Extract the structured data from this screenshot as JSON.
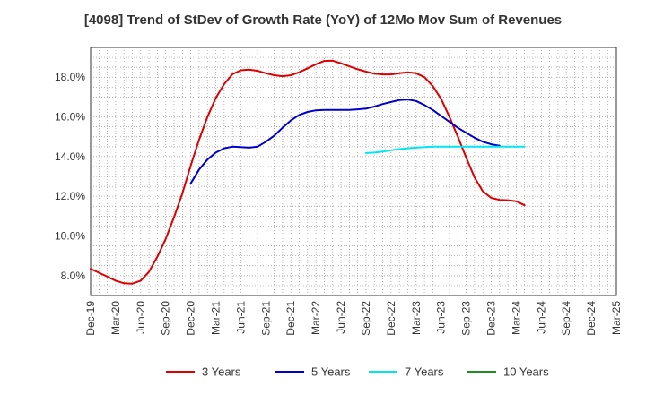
{
  "chart_data": {
    "type": "line",
    "title": "[4098]  Trend of StDev of Growth Rate (YoY) of 12Mo Mov Sum of Revenues",
    "xlabel": "",
    "ylabel": "",
    "ylim": [
      7.0,
      19.5
    ],
    "y_ticks": [
      8.0,
      10.0,
      12.0,
      14.0,
      16.0,
      18.0
    ],
    "y_tick_labels": [
      "8.0%",
      "10.0%",
      "12.0%",
      "14.0%",
      "16.0%",
      "18.0%"
    ],
    "x_tick_labels": [
      "Dec-19",
      "Mar-20",
      "Jun-20",
      "Sep-20",
      "Dec-20",
      "Mar-21",
      "Jun-21",
      "Sep-21",
      "Dec-21",
      "Mar-22",
      "Jun-22",
      "Sep-22",
      "Dec-22",
      "Mar-23",
      "Jun-23",
      "Sep-23",
      "Dec-23",
      "Mar-24",
      "Jun-24",
      "Sep-24",
      "Dec-24",
      "Mar-25"
    ],
    "grid": true,
    "legend_position": "bottom",
    "series": [
      {
        "name": "3 Years",
        "color": "#dd0000",
        "start_index": 0,
        "values": [
          8.35,
          8.15,
          7.95,
          7.75,
          7.62,
          7.6,
          7.75,
          8.2,
          8.95,
          9.85,
          10.95,
          12.15,
          13.55,
          14.85,
          16.0,
          16.95,
          17.65,
          18.15,
          18.35,
          18.38,
          18.32,
          18.2,
          18.1,
          18.05,
          18.1,
          18.25,
          18.45,
          18.65,
          18.82,
          18.83,
          18.7,
          18.55,
          18.4,
          18.28,
          18.18,
          18.14,
          18.14,
          18.2,
          18.25,
          18.2,
          18.0,
          17.55,
          16.9,
          16.0,
          15.0,
          13.95,
          12.95,
          12.25,
          11.92,
          11.82,
          11.8,
          11.75,
          11.55
        ]
      },
      {
        "name": "5 Years",
        "color": "#0000cc",
        "start_index": 12,
        "values": [
          12.65,
          13.35,
          13.85,
          14.2,
          14.42,
          14.5,
          14.48,
          14.45,
          14.5,
          14.75,
          15.05,
          15.45,
          15.82,
          16.1,
          16.25,
          16.33,
          16.35,
          16.35,
          16.35,
          16.35,
          16.38,
          16.42,
          16.52,
          16.65,
          16.75,
          16.85,
          16.88,
          16.8,
          16.6,
          16.35,
          16.05,
          15.75,
          15.45,
          15.2,
          14.95,
          14.75,
          14.62,
          14.55
        ]
      },
      {
        "name": "7 Years",
        "color": "#00e5ee",
        "start_index": 33,
        "values": [
          14.18,
          14.2,
          14.25,
          14.32,
          14.38,
          14.42,
          14.45,
          14.48,
          14.5,
          14.5,
          14.5,
          14.5,
          14.5,
          14.5,
          14.5,
          14.5,
          14.5,
          14.5,
          14.5,
          14.5
        ]
      },
      {
        "name": "10 Years",
        "color": "#228b22",
        "start_index": 52,
        "values": []
      }
    ]
  }
}
